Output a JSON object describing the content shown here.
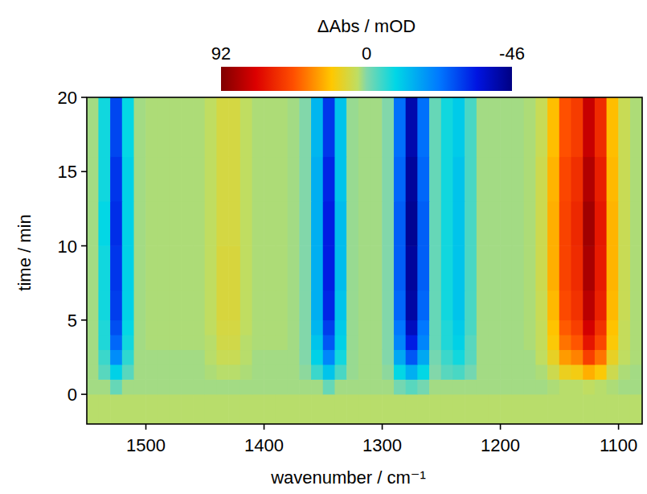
{
  "chart_data": {
    "type": "heatmap",
    "x_label": "wavenumber / cm⁻¹",
    "y_label": "time / min",
    "xlim": [
      1550,
      1080
    ],
    "ylim": [
      -2,
      20
    ],
    "xticks": [
      1500,
      1400,
      1300,
      1200,
      1100
    ],
    "yticks": [
      0,
      5,
      10,
      15,
      20
    ],
    "x_edges": [
      1550,
      1540,
      1530,
      1520,
      1510,
      1500,
      1490,
      1480,
      1470,
      1460,
      1450,
      1440,
      1430,
      1420,
      1410,
      1400,
      1390,
      1380,
      1370,
      1360,
      1350,
      1340,
      1330,
      1320,
      1310,
      1300,
      1290,
      1280,
      1270,
      1260,
      1250,
      1240,
      1230,
      1220,
      1210,
      1200,
      1190,
      1180,
      1170,
      1160,
      1150,
      1140,
      1130,
      1120,
      1110,
      1100,
      1090,
      1080
    ],
    "y_edges": [
      -2,
      0,
      1,
      2,
      3,
      4,
      5,
      7,
      10,
      13,
      16,
      20
    ],
    "cells": [
      [
        5,
        5,
        5,
        5,
        5,
        5,
        5,
        5,
        5,
        5,
        5,
        5,
        5,
        5,
        5,
        5,
        5,
        5,
        5,
        5,
        5,
        5,
        5,
        5,
        5,
        5,
        5,
        5,
        5,
        5,
        5,
        5,
        5,
        5,
        5,
        5,
        5,
        5,
        5,
        5,
        5,
        5,
        5,
        5,
        5,
        5,
        5
      ],
      [
        3,
        3,
        -2,
        3,
        3,
        3,
        3,
        3,
        3,
        3,
        3,
        3,
        3,
        3,
        3,
        3,
        3,
        3,
        3,
        3,
        -2,
        3,
        3,
        3,
        3,
        3,
        -1,
        -3,
        -1,
        3,
        3,
        3,
        3,
        3,
        3,
        3,
        3,
        3,
        3,
        4,
        5,
        5,
        6,
        5,
        4,
        3,
        3
      ],
      [
        3,
        -3,
        -10,
        -3,
        3,
        3,
        3,
        3,
        3,
        3,
        4,
        5,
        5,
        4,
        3,
        3,
        3,
        3,
        1,
        -5,
        -12,
        -4,
        2,
        3,
        3,
        1,
        -9,
        -15,
        -9,
        0,
        -3,
        -4,
        -1,
        3,
        3,
        3,
        3,
        3,
        4,
        9,
        17,
        19,
        27,
        21,
        9,
        4,
        3
      ],
      [
        3,
        -5,
        -20,
        -6,
        3,
        3,
        3,
        3,
        3,
        3,
        5,
        8,
        8,
        5,
        3,
        3,
        3,
        3,
        0,
        -10,
        -21,
        -8,
        2,
        3,
        3,
        0,
        -16,
        -27,
        -16,
        -1,
        -5,
        -8,
        -3,
        3,
        3,
        3,
        3,
        3,
        6,
        16,
        31,
        36,
        51,
        39,
        16,
        6,
        4
      ],
      [
        3,
        -7,
        -25,
        -8,
        3,
        4,
        4,
        4,
        4,
        4,
        5,
        10,
        10,
        5,
        4,
        4,
        4,
        3,
        0,
        -12,
        -27,
        -10,
        2,
        3,
        3,
        0,
        -21,
        -34,
        -21,
        -2,
        -7,
        -10,
        -3,
        3,
        3,
        3,
        3,
        4,
        7,
        21,
        39,
        45,
        64,
        49,
        21,
        7,
        4
      ],
      [
        3,
        -7,
        -28,
        -9,
        3,
        4,
        4,
        4,
        4,
        4,
        6,
        11,
        11,
        6,
        4,
        4,
        4,
        3,
        0,
        -14,
        -30,
        -11,
        2,
        3,
        3,
        0,
        -23,
        -39,
        -23,
        -2,
        -7,
        -11,
        -4,
        3,
        3,
        3,
        3,
        4,
        7,
        23,
        44,
        51,
        72,
        55,
        23,
        7,
        4
      ],
      [
        3,
        -8,
        -30,
        -10,
        3,
        4,
        4,
        4,
        4,
        4,
        6,
        12,
        12,
        6,
        4,
        4,
        4,
        3,
        0,
        -15,
        -33,
        -12,
        2,
        3,
        3,
        0,
        -25,
        -42,
        -25,
        -2,
        -8,
        -12,
        -4,
        3,
        3,
        3,
        3,
        4,
        8,
        25,
        48,
        55,
        78,
        60,
        25,
        8,
        4
      ],
      [
        3,
        -8,
        -31,
        -10,
        3,
        4,
        4,
        4,
        4,
        4,
        6,
        12,
        12,
        6,
        4,
        4,
        4,
        3,
        0,
        -15,
        -34,
        -13,
        2,
        3,
        3,
        0,
        -26,
        -43,
        -26,
        -2,
        -8,
        -12,
        -4,
        3,
        3,
        3,
        3,
        4,
        9,
        27,
        50,
        57,
        82,
        62,
        26,
        8,
        4
      ],
      [
        3,
        -9,
        -32,
        -10,
        3,
        4,
        4,
        4,
        4,
        4,
        6,
        11,
        11,
        6,
        4,
        4,
        4,
        3,
        0,
        -15,
        -34,
        -13,
        2,
        3,
        3,
        0,
        -26,
        -44,
        -26,
        -2,
        -8,
        -12,
        -4,
        3,
        3,
        3,
        3,
        4,
        9,
        27,
        50,
        58,
        84,
        63,
        26,
        8,
        4
      ],
      [
        3,
        -8,
        -31,
        -10,
        3,
        4,
        4,
        4,
        4,
        4,
        6,
        11,
        11,
        6,
        4,
        4,
        4,
        3,
        0,
        -15,
        -33,
        -12,
        2,
        3,
        3,
        0,
        -25,
        -43,
        -25,
        -2,
        -8,
        -12,
        -4,
        3,
        3,
        3,
        3,
        4,
        9,
        26,
        49,
        56,
        80,
        61,
        25,
        8,
        4
      ],
      [
        3,
        -8,
        -29,
        -9,
        3,
        4,
        4,
        4,
        4,
        4,
        6,
        11,
        11,
        6,
        4,
        4,
        4,
        3,
        0,
        -14,
        -31,
        -12,
        2,
        3,
        3,
        0,
        -24,
        -41,
        -24,
        -2,
        -8,
        -11,
        -4,
        3,
        3,
        3,
        3,
        4,
        8,
        24,
        46,
        52,
        75,
        57,
        24,
        8,
        4
      ]
    ],
    "colorbar": {
      "label": "ΔAbs / mOD",
      "range": [
        92,
        -46
      ],
      "ticks": [
        92,
        0,
        -46
      ]
    }
  }
}
